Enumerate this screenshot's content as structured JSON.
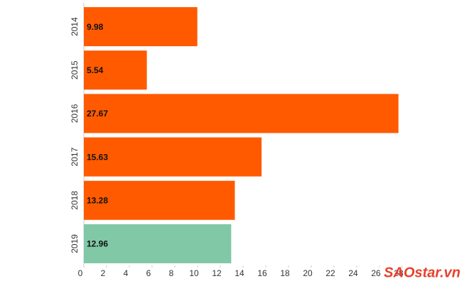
{
  "chart_data": {
    "type": "bar",
    "orientation": "horizontal",
    "categories": [
      "2014",
      "2015",
      "2016",
      "2017",
      "2018",
      "2019"
    ],
    "values": [
      9.98,
      5.54,
      27.67,
      15.63,
      13.28,
      12.96
    ],
    "colors": [
      "#ff5a00",
      "#ff5a00",
      "#ff5a00",
      "#ff5a00",
      "#ff5a00",
      "#80c8a6"
    ],
    "xlim": [
      0,
      28
    ],
    "xticks": [
      0,
      2,
      4,
      6,
      8,
      10,
      12,
      14,
      16,
      18,
      20,
      22,
      24,
      26,
      28
    ],
    "grid": false,
    "watermark": "SAOstar.vn"
  }
}
